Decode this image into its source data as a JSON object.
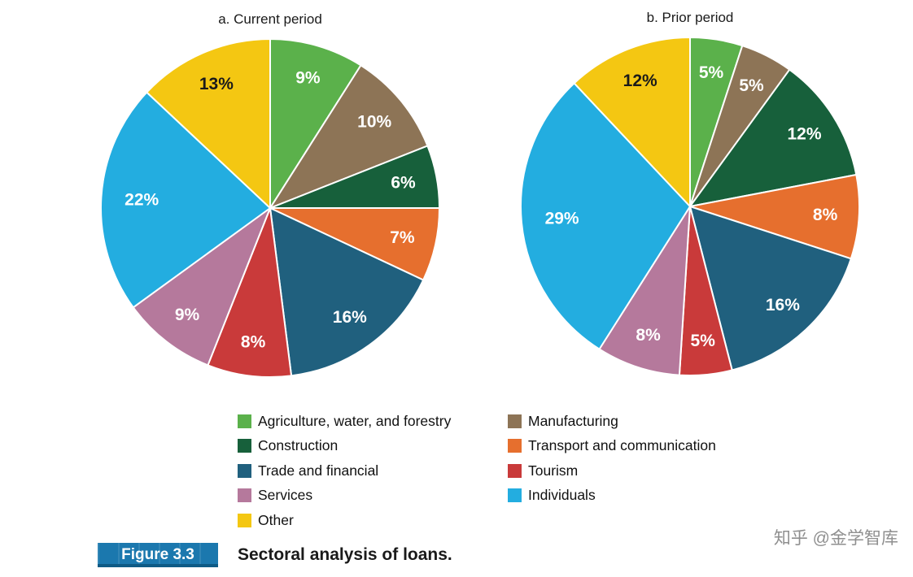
{
  "figure": {
    "tag": "Figure 3.3",
    "caption": "Sectoral analysis of loans.",
    "tag_bg": "#1B78AE"
  },
  "watermark": "知乎 @金学智库",
  "chart_data": {
    "type": "pie",
    "title": "Sectoral analysis of loans",
    "legend_position": "bottom",
    "label_format": "percent",
    "categories": [
      "Agriculture, water, and forestry",
      "Manufacturing",
      "Construction",
      "Transport and communication",
      "Trade and financial",
      "Tourism",
      "Services",
      "Individuals",
      "Other"
    ],
    "colors": [
      "#5BB14B",
      "#8D7456",
      "#17603B",
      "#E66F2E",
      "#20607E",
      "#C93A3A",
      "#B5799C",
      "#23ADE0",
      "#F4C712"
    ],
    "label_text_colors": [
      "#ffffff",
      "#ffffff",
      "#ffffff",
      "#ffffff",
      "#ffffff",
      "#ffffff",
      "#ffffff",
      "#ffffff",
      "#1a1a1a"
    ],
    "charts": [
      {
        "title": "a. Current period",
        "values": [
          9,
          10,
          6,
          7,
          16,
          8,
          9,
          22,
          13
        ]
      },
      {
        "title": "b. Prior period",
        "values": [
          5,
          5,
          12,
          8,
          16,
          5,
          8,
          29,
          12
        ]
      }
    ],
    "legend_columns": [
      [
        0,
        2,
        4,
        6,
        8
      ],
      [
        1,
        3,
        5,
        7
      ]
    ]
  }
}
